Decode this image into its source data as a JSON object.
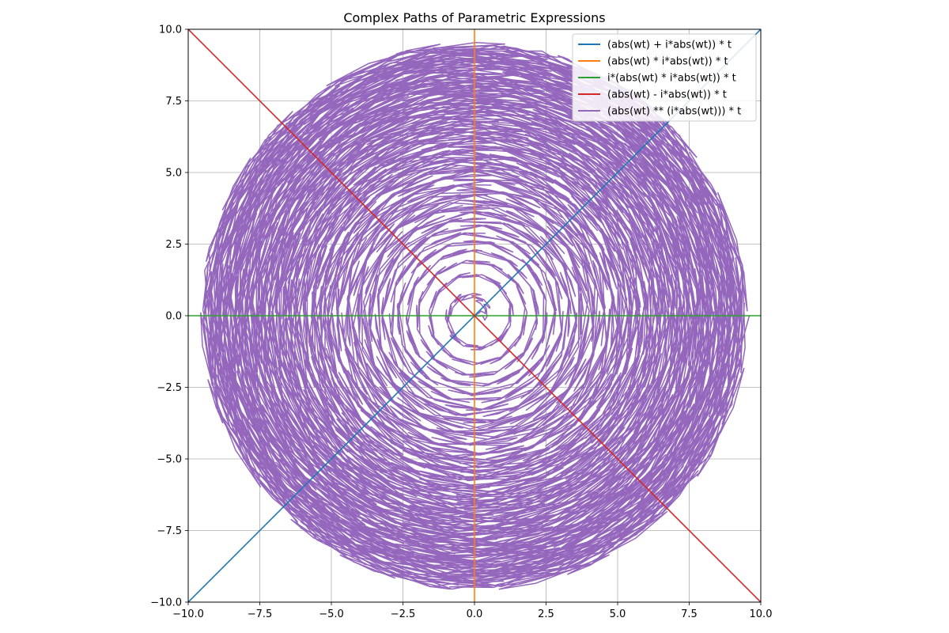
{
  "chart_data": {
    "type": "line",
    "title": "Complex Paths of Parametric Expressions",
    "xlabel": "",
    "ylabel": "",
    "xlim": [
      -10,
      10
    ],
    "ylim": [
      -10,
      10
    ],
    "xticks": [
      -10.0,
      -7.5,
      -5.0,
      -2.5,
      0.0,
      2.5,
      5.0,
      7.5,
      10.0
    ],
    "yticks": [
      -10.0,
      -7.5,
      -5.0,
      -2.5,
      0.0,
      2.5,
      5.0,
      7.5,
      10.0
    ],
    "xtick_labels": [
      "−10.0",
      "−7.5",
      "−5.0",
      "−2.5",
      "0.0",
      "2.5",
      "5.0",
      "7.5",
      "10.0"
    ],
    "ytick_labels": [
      "−10.0",
      "−7.5",
      "−5.0",
      "−2.5",
      "0.0",
      "2.5",
      "5.0",
      "7.5",
      "10.0"
    ],
    "grid": true,
    "legend_position": "top-right",
    "series": [
      {
        "name": "(abs(wt) + i*abs(wt)) * t",
        "color": "#1f77b4",
        "x": [
          -10,
          10
        ],
        "y": [
          -10,
          10
        ]
      },
      {
        "name": "(abs(wt) * i*abs(wt)) * t",
        "color": "#ff7f0e",
        "x": [
          0,
          0
        ],
        "y": [
          -10,
          10
        ]
      },
      {
        "name": "i*(abs(wt) * i*abs(wt)) * t",
        "color": "#2ca02c",
        "x": [
          -10,
          10
        ],
        "y": [
          0,
          0
        ]
      },
      {
        "name": "(abs(wt) - i*abs(wt)) * t",
        "color": "#d62728",
        "x": [
          -10,
          10
        ],
        "y": [
          10,
          -10
        ]
      },
      {
        "name": "(abs(wt) ** (i*abs(wt))) * t",
        "color": "#9467bd",
        "x_start": -8.3,
        "y_start": 5.7,
        "x_end": 8.3,
        "y_end": -5.7,
        "max_radius": 9.6
      }
    ]
  }
}
